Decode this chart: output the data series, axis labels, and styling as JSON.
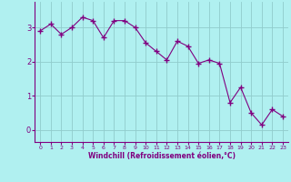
{
  "x": [
    0,
    1,
    2,
    3,
    4,
    5,
    6,
    7,
    8,
    9,
    10,
    11,
    12,
    13,
    14,
    15,
    16,
    17,
    18,
    19,
    20,
    21,
    22,
    23
  ],
  "y": [
    2.9,
    3.1,
    2.8,
    3.0,
    3.3,
    3.2,
    2.7,
    3.2,
    3.2,
    3.0,
    2.55,
    2.3,
    2.05,
    2.6,
    2.45,
    1.95,
    2.05,
    1.95,
    0.8,
    1.25,
    0.5,
    0.15,
    0.6,
    0.4
  ],
  "line_color": "#800080",
  "marker": "+",
  "background_color": "#b0f0f0",
  "grid_color": "#aadddd",
  "xlabel": "Windchill (Refroidissement éolien,°C)",
  "xlabel_color": "#800080",
  "tick_color": "#800080",
  "yticks": [
    0,
    1,
    2,
    3
  ],
  "xticks": [
    0,
    1,
    2,
    3,
    4,
    5,
    6,
    7,
    8,
    9,
    10,
    11,
    12,
    13,
    14,
    15,
    16,
    17,
    18,
    19,
    20,
    21,
    22,
    23
  ],
  "ylim": [
    -0.35,
    3.75
  ],
  "xlim": [
    -0.5,
    23.5
  ]
}
